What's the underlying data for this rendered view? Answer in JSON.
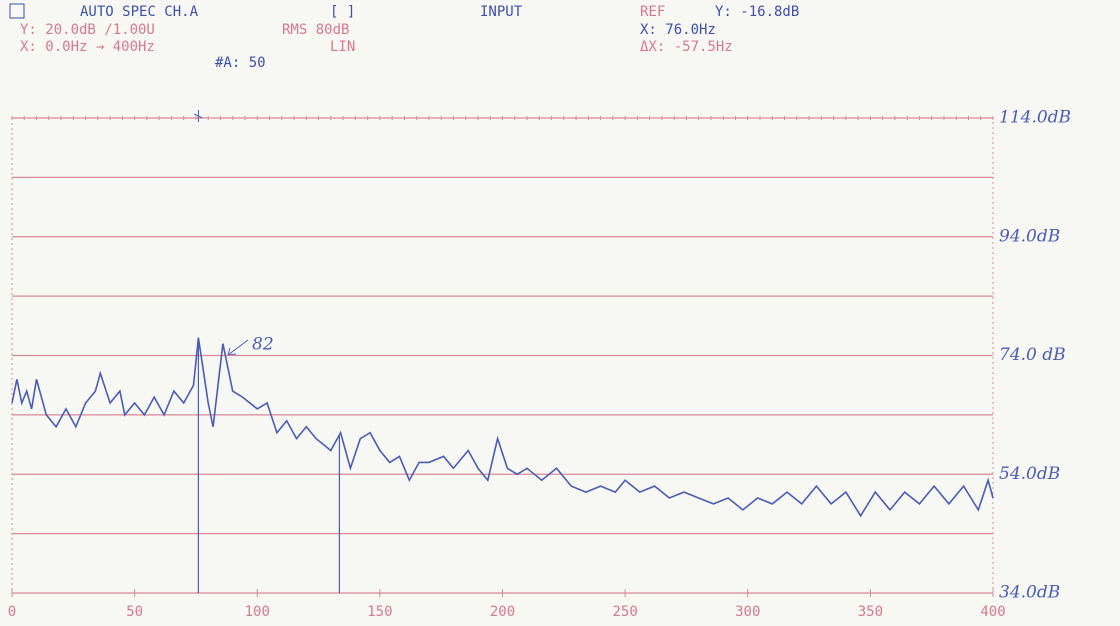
{
  "chart_data": {
    "type": "line",
    "header": {
      "mode": "AUTO SPEC CH.A",
      "bracket": "[ ]",
      "source": "INPUT",
      "ref": "REF",
      "ref_y": "Y: -16.8dB",
      "y_scale": "Y: 20.0dB /1.00U",
      "rms": "RMS 80dB",
      "x_range": "X: 0.0Hz → 400Hz",
      "x_scale": "LIN",
      "averages": "#A: 50",
      "cursor_x": "X: 76.0Hz",
      "cursor_dx": "ΔX: -57.5Hz"
    },
    "annotation": "82",
    "x": [
      0,
      2,
      4,
      6,
      8,
      10,
      14,
      18,
      22,
      26,
      30,
      34,
      36,
      40,
      44,
      46,
      50,
      54,
      58,
      62,
      66,
      70,
      74,
      76,
      80,
      82,
      86,
      90,
      94,
      100,
      104,
      108,
      112,
      116,
      120,
      124,
      130,
      134,
      138,
      142,
      146,
      150,
      154,
      158,
      162,
      166,
      170,
      176,
      180,
      186,
      190,
      194,
      198,
      202,
      206,
      210,
      216,
      222,
      228,
      234,
      240,
      246,
      250,
      256,
      262,
      268,
      274,
      280,
      286,
      292,
      298,
      304,
      310,
      316,
      322,
      328,
      334,
      340,
      346,
      352,
      358,
      364,
      370,
      376,
      382,
      388,
      394,
      398,
      400
    ],
    "series": [
      {
        "color": "#4a5cb4",
        "values": [
          66,
          70,
          66,
          68,
          65,
          70,
          64,
          62,
          65,
          62,
          66,
          68,
          71,
          66,
          68,
          64,
          66,
          64,
          67,
          64,
          68,
          66,
          69,
          77,
          66,
          62,
          76,
          68,
          67,
          65,
          66,
          61,
          63,
          60,
          62,
          60,
          58,
          61,
          55,
          60,
          61,
          58,
          56,
          57,
          53,
          56,
          56,
          57,
          55,
          58,
          55,
          53,
          60,
          55,
          54,
          55,
          53,
          55,
          52,
          51,
          52,
          51,
          53,
          51,
          52,
          50,
          51,
          50,
          49,
          50,
          48,
          50,
          49,
          51,
          49,
          52,
          49,
          51,
          47,
          51,
          48,
          51,
          49,
          52,
          49,
          52,
          48,
          53,
          50
        ]
      }
    ],
    "cursors": [
      76,
      133.5
    ],
    "xlim": [
      0,
      400
    ],
    "ylim": [
      34,
      114
    ],
    "xticks": [
      0,
      50,
      100,
      150,
      200,
      250,
      300,
      350,
      400
    ],
    "yticks": [
      {
        "value": 114,
        "label": "114.0dB"
      },
      {
        "value": 94,
        "label": "94.0dB"
      },
      {
        "value": 74,
        "label": "74.0 dB"
      },
      {
        "value": 54,
        "label": "54.0dB"
      },
      {
        "value": 34,
        "label": "34.0dB"
      }
    ],
    "gridlines": [
      104,
      84,
      64,
      44
    ],
    "grid": true
  }
}
